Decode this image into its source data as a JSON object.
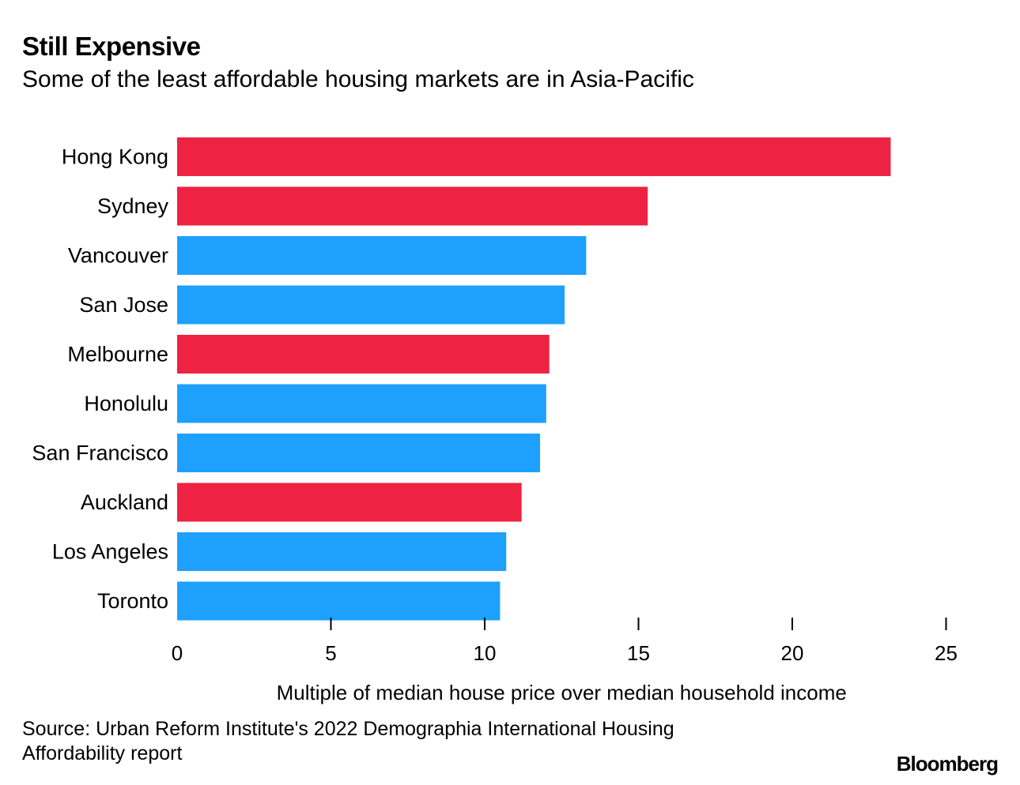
{
  "header": {
    "title": "Still Expensive",
    "subtitle": "Some of the least affordable housing markets are in Asia-Pacific"
  },
  "footer": {
    "source": "Source: Urban Reform Institute's 2022 Demographia International Housing Affordability report",
    "brand": "Bloomberg"
  },
  "colors": {
    "asia_pacific": "#ee2242",
    "other": "#1ea0ff"
  },
  "chart_data": {
    "type": "bar",
    "orientation": "horizontal",
    "title": "Still Expensive",
    "subtitle": "Some of the least affordable housing markets are in Asia-Pacific",
    "xlabel": "Multiple of median house price over median household income",
    "ylabel": "",
    "xlim": [
      0,
      25
    ],
    "xticks": [
      0,
      5,
      10,
      15,
      20,
      25
    ],
    "grid": false,
    "legend": "none",
    "categories": [
      "Hong Kong",
      "Sydney",
      "Vancouver",
      "San Jose",
      "Melbourne",
      "Honolulu",
      "San Francisco",
      "Auckland",
      "Los Angeles",
      "Toronto"
    ],
    "values": [
      23.2,
      15.3,
      13.3,
      12.6,
      12.1,
      12.0,
      11.8,
      11.2,
      10.7,
      10.5
    ],
    "groups": [
      "asia_pacific",
      "asia_pacific",
      "other",
      "other",
      "asia_pacific",
      "other",
      "other",
      "asia_pacific",
      "other",
      "other"
    ]
  }
}
